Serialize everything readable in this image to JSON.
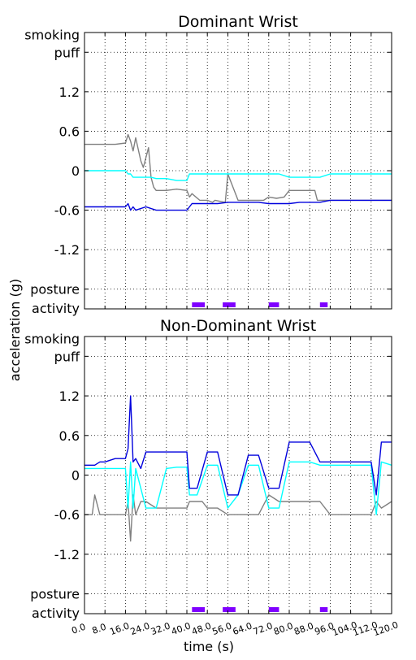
{
  "chart_data": [
    {
      "type": "line",
      "title": "Dominant Wrist",
      "xlim": [
        0,
        120
      ],
      "ylim": [
        -2.1,
        2.1
      ],
      "yticks": [
        {
          "v": 1.8,
          "label": "puff"
        },
        {
          "v": 1.2,
          "label": "1.2"
        },
        {
          "v": 0.6,
          "label": "0.6"
        },
        {
          "v": 0,
          "label": "0"
        },
        {
          "v": -0.6,
          "label": "-0.6"
        },
        {
          "v": -1.2,
          "label": "-1.2"
        },
        {
          "v": -1.8,
          "label": "posture"
        }
      ],
      "grid": true,
      "series": [
        {
          "color": "#808080",
          "x": [
            0,
            6,
            12,
            16,
            17,
            18,
            19,
            20,
            22,
            23,
            25,
            26,
            27,
            28,
            32,
            36,
            40,
            41,
            42,
            45,
            48,
            50,
            51,
            55,
            56,
            60,
            64,
            67,
            70,
            72,
            75,
            78,
            80,
            84,
            88,
            90,
            91,
            94,
            96,
            100,
            104,
            108,
            112,
            116,
            120
          ],
          "y": [
            0.4,
            0.4,
            0.4,
            0.42,
            0.55,
            0.45,
            0.3,
            0.5,
            0.15,
            0.05,
            0.35,
            -0.1,
            -0.25,
            -0.3,
            -0.3,
            -0.28,
            -0.3,
            -0.4,
            -0.35,
            -0.45,
            -0.45,
            -0.48,
            -0.45,
            -0.48,
            -0.05,
            -0.45,
            -0.45,
            -0.45,
            -0.45,
            -0.4,
            -0.42,
            -0.4,
            -0.3,
            -0.3,
            -0.3,
            -0.3,
            -0.45,
            -0.45,
            -0.45,
            -0.45,
            -0.45,
            -0.45,
            -0.45,
            -0.45,
            -0.45
          ]
        },
        {
          "color": "#00ffff",
          "x": [
            0,
            8,
            16,
            17,
            18,
            19,
            20,
            22,
            24,
            26,
            28,
            32,
            36,
            40,
            41,
            44,
            48,
            52,
            56,
            60,
            64,
            68,
            72,
            76,
            80,
            84,
            88,
            92,
            96,
            100,
            104,
            108,
            112,
            116,
            120
          ],
          "y": [
            0.0,
            0.0,
            0.0,
            -0.05,
            -0.05,
            -0.1,
            -0.1,
            -0.1,
            -0.1,
            -0.1,
            -0.12,
            -0.12,
            -0.15,
            -0.15,
            -0.05,
            -0.05,
            -0.05,
            -0.05,
            -0.05,
            -0.05,
            -0.05,
            -0.05,
            -0.05,
            -0.05,
            -0.1,
            -0.1,
            -0.1,
            -0.1,
            -0.05,
            -0.05,
            -0.05,
            -0.05,
            -0.05,
            -0.05,
            -0.05
          ]
        },
        {
          "color": "#0000dd",
          "x": [
            0,
            4,
            8,
            10,
            12,
            16,
            17,
            18,
            19,
            20,
            24,
            28,
            32,
            36,
            40,
            41,
            42,
            44,
            48,
            52,
            56,
            60,
            64,
            68,
            72,
            76,
            80,
            84,
            88,
            92,
            96,
            100,
            104,
            108,
            112,
            116,
            120
          ],
          "y": [
            -0.55,
            -0.55,
            -0.55,
            -0.55,
            -0.55,
            -0.55,
            -0.5,
            -0.6,
            -0.55,
            -0.6,
            -0.55,
            -0.6,
            -0.6,
            -0.6,
            -0.6,
            -0.55,
            -0.5,
            -0.5,
            -0.5,
            -0.5,
            -0.48,
            -0.48,
            -0.48,
            -0.48,
            -0.5,
            -0.5,
            -0.5,
            -0.48,
            -0.48,
            -0.48,
            -0.45,
            -0.45,
            -0.45,
            -0.45,
            -0.45,
            -0.45,
            -0.45
          ]
        }
      ],
      "events": [
        {
          "start": 42,
          "end": 47
        },
        {
          "start": 54,
          "end": 59
        },
        {
          "start": 72,
          "end": 76
        },
        {
          "start": 92,
          "end": 95
        }
      ],
      "event_color": "#7f00ff"
    },
    {
      "type": "line",
      "title": "Non-Dominant Wrist",
      "xlim": [
        0,
        120
      ],
      "ylim": [
        -2.1,
        2.1
      ],
      "yticks": [
        {
          "v": 1.8,
          "label": "puff"
        },
        {
          "v": 1.2,
          "label": "1.2"
        },
        {
          "v": 0.6,
          "label": "0.6"
        },
        {
          "v": 0,
          "label": "0"
        },
        {
          "v": -0.6,
          "label": "-0.6"
        },
        {
          "v": -1.2,
          "label": "-1.2"
        },
        {
          "v": -1.8,
          "label": "posture"
        }
      ],
      "grid": true,
      "series": [
        {
          "color": "#808080",
          "x": [
            0,
            3,
            4,
            6,
            8,
            12,
            14,
            16,
            17,
            18,
            19,
            20,
            22,
            24,
            28,
            32,
            36,
            40,
            41,
            44,
            46,
            48,
            52,
            56,
            60,
            64,
            68,
            72,
            76,
            80,
            84,
            88,
            92,
            96,
            100,
            104,
            108,
            112,
            114,
            116,
            120
          ],
          "y": [
            -0.6,
            -0.6,
            -0.3,
            -0.6,
            -0.6,
            -0.6,
            -0.6,
            -0.6,
            -0.4,
            -1.0,
            -0.3,
            -0.6,
            -0.4,
            -0.4,
            -0.5,
            -0.5,
            -0.5,
            -0.5,
            -0.4,
            -0.4,
            -0.4,
            -0.5,
            -0.5,
            -0.6,
            -0.6,
            -0.6,
            -0.6,
            -0.3,
            -0.4,
            -0.4,
            -0.4,
            -0.4,
            -0.4,
            -0.6,
            -0.6,
            -0.6,
            -0.6,
            -0.6,
            -0.4,
            -0.5,
            -0.4
          ]
        },
        {
          "color": "#00ffff",
          "x": [
            0,
            4,
            8,
            12,
            16,
            17,
            18,
            19,
            20,
            24,
            28,
            32,
            36,
            40,
            41,
            44,
            48,
            52,
            56,
            60,
            64,
            68,
            72,
            76,
            80,
            84,
            88,
            92,
            96,
            100,
            104,
            108,
            112,
            114,
            116,
            120
          ],
          "y": [
            0.1,
            0.1,
            0.1,
            0.1,
            0.1,
            -0.5,
            0.2,
            -0.5,
            0.1,
            -0.5,
            -0.5,
            0.1,
            0.12,
            0.12,
            -0.3,
            -0.3,
            0.15,
            0.15,
            -0.5,
            -0.3,
            0.15,
            0.15,
            -0.5,
            -0.5,
            0.2,
            0.2,
            0.2,
            0.15,
            0.15,
            0.15,
            0.15,
            0.15,
            0.15,
            -0.6,
            0.2,
            0.15
          ]
        },
        {
          "color": "#0000dd",
          "x": [
            0,
            4,
            6,
            8,
            12,
            16,
            17,
            18,
            19,
            20,
            22,
            24,
            28,
            32,
            36,
            40,
            41,
            44,
            48,
            52,
            56,
            60,
            64,
            68,
            72,
            76,
            80,
            84,
            88,
            92,
            96,
            100,
            104,
            108,
            112,
            114,
            116,
            120
          ],
          "y": [
            0.15,
            0.15,
            0.2,
            0.2,
            0.25,
            0.25,
            0.4,
            1.2,
            0.2,
            0.25,
            0.1,
            0.35,
            0.35,
            0.35,
            0.35,
            0.35,
            -0.2,
            -0.2,
            0.35,
            0.35,
            -0.3,
            -0.3,
            0.3,
            0.3,
            -0.2,
            -0.2,
            0.5,
            0.5,
            0.5,
            0.2,
            0.2,
            0.2,
            0.2,
            0.2,
            0.2,
            -0.3,
            0.5,
            0.5
          ]
        }
      ],
      "events": [
        {
          "start": 42,
          "end": 47
        },
        {
          "start": 54,
          "end": 59
        },
        {
          "start": 72,
          "end": 76
        },
        {
          "start": 92,
          "end": 95
        }
      ],
      "event_color": "#7f00ff"
    }
  ],
  "labels": {
    "ylabel": "acceleration (g)",
    "xlabel": "time (s)",
    "smoking": "smoking",
    "activity": "activity"
  },
  "xticks": [
    "0.0",
    "8.0",
    "16.0",
    "24.0",
    "32.0",
    "40.0",
    "48.0",
    "56.0",
    "64.0",
    "72.0",
    "80.0",
    "88.0",
    "96.0",
    "104.0",
    "112.0",
    "120.0"
  ]
}
